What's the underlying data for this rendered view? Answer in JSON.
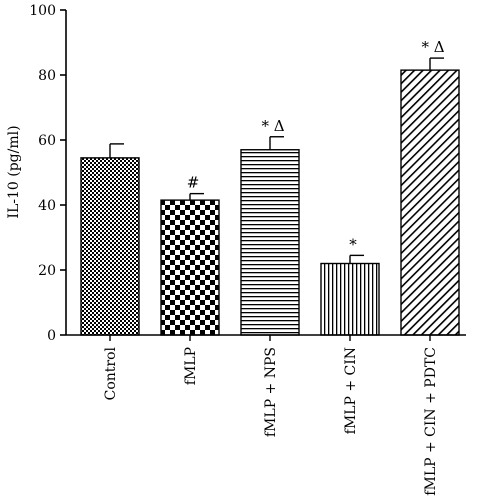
{
  "chart_data": {
    "type": "bar",
    "ylabel": "IL-10 (pg/ml)",
    "ylim": [
      0,
      100
    ],
    "yticks": [
      0,
      20,
      40,
      60,
      80,
      100
    ],
    "categories": [
      "Control",
      "fMLP",
      "fMLP + NPS",
      "fMLP + CIN",
      "fMLP + CIN + PDTC"
    ],
    "values": [
      54.5,
      41.5,
      57.0,
      22.0,
      81.5
    ],
    "errors": [
      4.3,
      2.0,
      4.0,
      2.5,
      3.7
    ],
    "annotations": [
      "",
      "#",
      "* Δ",
      "*",
      "* Δ"
    ],
    "patterns": [
      "fine-checker",
      "coarse-checker",
      "horizontal-lines",
      "vertical-lines",
      "diagonal-lines"
    ],
    "colors": {
      "bar_ink": "#000000",
      "background": "#ffffff"
    }
  }
}
